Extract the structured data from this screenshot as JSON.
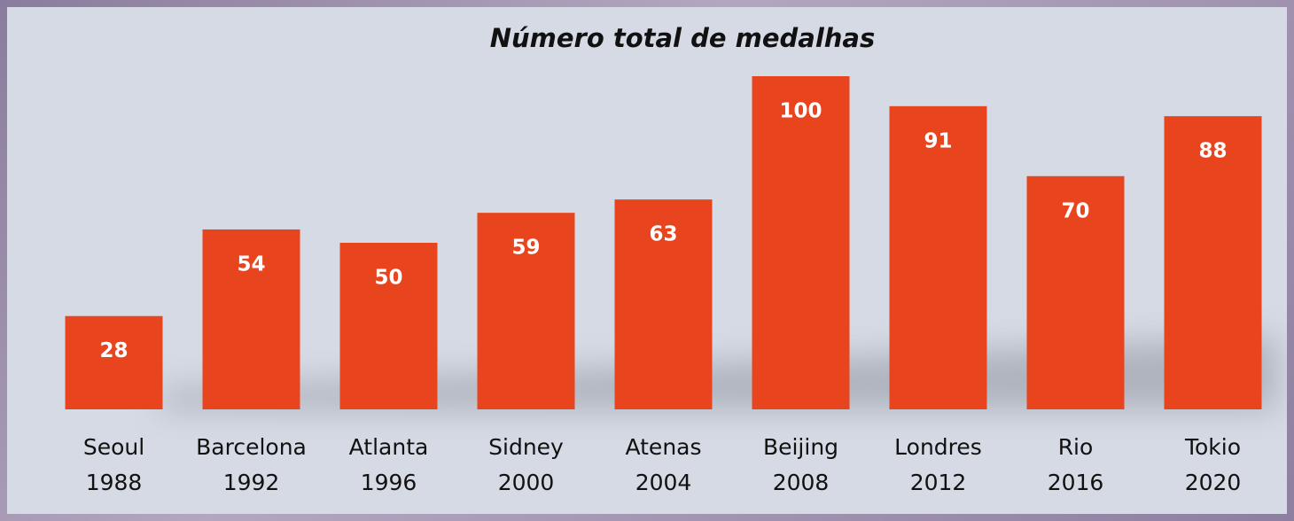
{
  "chart_data": {
    "type": "bar",
    "title": "Número total de medalhas",
    "categories": [
      [
        "Seoul",
        "1988"
      ],
      [
        "Barcelona",
        "1992"
      ],
      [
        "Atlanta",
        "1996"
      ],
      [
        "Sidney",
        "2000"
      ],
      [
        "Atenas",
        "2004"
      ],
      [
        "Beijing",
        "2008"
      ],
      [
        "Londres",
        "2012"
      ],
      [
        "Rio",
        "2016"
      ],
      [
        "Tokio",
        "2020"
      ]
    ],
    "values": [
      28,
      54,
      50,
      59,
      63,
      100,
      91,
      70,
      88
    ],
    "color": "#e8451f"
  }
}
